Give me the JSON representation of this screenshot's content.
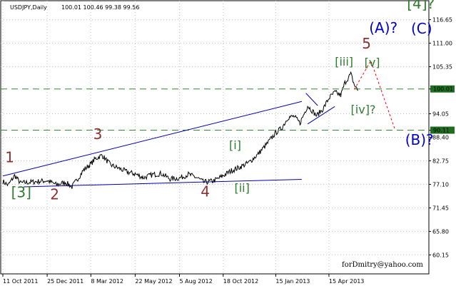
{
  "chart_data": {
    "type": "line",
    "header": {
      "symbol": "USDJPY,Daily",
      "ohlc": "100.01 100.46 99.38 99.56"
    },
    "y_ticks": [
      "116.65",
      "111.00",
      "105.35",
      "100.01",
      "94.05",
      "90.11",
      "88.40",
      "82.75",
      "77.10",
      "71.45",
      "65.80",
      "60.15"
    ],
    "y_tick_values": [
      116.65,
      111.0,
      105.35,
      100.01,
      94.05,
      90.11,
      88.4,
      82.75,
      77.1,
      71.45,
      65.8,
      60.15
    ],
    "ylim": [
      55.6,
      121.2
    ],
    "x_ticks": [
      "11 Oct 2011",
      "25 Dec 2011",
      "8 Mar 2012",
      "22 May 2012",
      "5 Aug 2012",
      "18 Oct 2012",
      "15 Jan 2013",
      "15 Apr 2013"
    ],
    "x_tick_dates": [
      "2011-10-11",
      "2011-12-25",
      "2012-03-08",
      "2012-05-22",
      "2012-08-05",
      "2012-10-18",
      "2013-01-15",
      "2013-04-15"
    ],
    "xlim": [
      "2011-10-11",
      "2013-09-30"
    ],
    "grid": true,
    "price_series": [
      [
        "2011-10-11",
        77.8
      ],
      [
        "2011-10-20",
        76.9
      ],
      [
        "2011-10-31",
        79.2
      ],
      [
        "2011-11-10",
        77.4
      ],
      [
        "2011-11-25",
        77.6
      ],
      [
        "2011-12-10",
        77.8
      ],
      [
        "2011-12-25",
        78.0
      ],
      [
        "2012-01-10",
        77.0
      ],
      [
        "2012-01-25",
        77.6
      ],
      [
        "2012-02-05",
        76.5
      ],
      [
        "2012-02-15",
        78.5
      ],
      [
        "2012-02-25",
        80.6
      ],
      [
        "2012-03-08",
        82.0
      ],
      [
        "2012-03-15",
        83.2
      ],
      [
        "2012-03-27",
        84.1
      ],
      [
        "2012-04-10",
        81.8
      ],
      [
        "2012-04-25",
        80.9
      ],
      [
        "2012-05-10",
        80.0
      ],
      [
        "2012-05-22",
        79.6
      ],
      [
        "2012-06-05",
        78.7
      ],
      [
        "2012-06-20",
        79.4
      ],
      [
        "2012-07-05",
        79.7
      ],
      [
        "2012-07-20",
        78.4
      ],
      [
        "2012-08-05",
        78.6
      ],
      [
        "2012-08-20",
        79.5
      ],
      [
        "2012-09-05",
        78.6
      ],
      [
        "2012-09-15",
        77.6
      ],
      [
        "2012-10-01",
        77.9
      ],
      [
        "2012-10-10",
        78.5
      ],
      [
        "2012-10-18",
        79.2
      ],
      [
        "2012-11-01",
        80.4
      ],
      [
        "2012-11-15",
        81.2
      ],
      [
        "2012-11-30",
        82.3
      ],
      [
        "2012-12-15",
        84.2
      ],
      [
        "2012-12-31",
        86.8
      ],
      [
        "2013-01-15",
        89.5
      ],
      [
        "2013-01-25",
        90.6
      ],
      [
        "2013-02-05",
        93.2
      ],
      [
        "2013-02-15",
        93.4
      ],
      [
        "2013-02-25",
        91.8
      ],
      [
        "2013-03-10",
        96.0
      ],
      [
        "2013-03-25",
        93.6
      ],
      [
        "2013-04-05",
        95.2
      ],
      [
        "2013-04-15",
        97.8
      ],
      [
        "2013-04-25",
        99.2
      ],
      [
        "2013-05-05",
        98.5
      ],
      [
        "2013-05-12",
        101.5
      ],
      [
        "2013-05-22",
        103.6
      ],
      [
        "2013-05-28",
        101.0
      ],
      [
        "2013-06-03",
        99.6
      ]
    ],
    "horizontal_levels": [
      {
        "value": 100.01,
        "label": "100.01"
      },
      {
        "value": 90.11,
        "label": "90.11"
      }
    ],
    "trend_lines": [
      {
        "from": [
          "2011-10-11",
          79.1
        ],
        "to": [
          "2013-02-28",
          97.0
        ]
      },
      {
        "from": [
          "2011-11-15",
          76.5
        ],
        "to": [
          "2013-02-28",
          78.3
        ]
      },
      {
        "from": [
          "2013-03-07",
          99.0
        ],
        "to": [
          "2013-03-27",
          96.0
        ]
      },
      {
        "from": [
          "2013-03-10",
          91.6
        ],
        "to": [
          "2013-04-25",
          95.8
        ]
      }
    ],
    "forecast_path": [
      [
        "2013-05-28",
        99.9
      ],
      [
        "2013-06-25",
        106.8
      ],
      [
        "2013-08-05",
        90.2
      ]
    ],
    "wave_labels": [
      {
        "text": "1",
        "date": "2011-10-15",
        "price": 82.4,
        "color": "#8b3030",
        "size": 20
      },
      {
        "text": "[3]",
        "date": "2011-10-25",
        "price": 74.0,
        "color": "#2e7d2e",
        "size": 20
      },
      {
        "text": "2",
        "date": "2011-12-30",
        "price": 73.5,
        "color": "#8b3030",
        "size": 20
      },
      {
        "text": "3",
        "date": "2012-03-12",
        "price": 88.0,
        "color": "#8b3030",
        "size": 20
      },
      {
        "text": "4",
        "date": "2012-09-10",
        "price": 74.2,
        "color": "#8b3030",
        "size": 20
      },
      {
        "text": "[i]",
        "date": "2012-10-28",
        "price": 85.6,
        "color": "#2e7d2e",
        "size": 16
      },
      {
        "text": "[ii]",
        "date": "2012-11-06",
        "price": 75.3,
        "color": "#2e7d2e",
        "size": 16
      },
      {
        "text": "[iii]",
        "date": "2013-04-25",
        "price": 105.6,
        "color": "#2e7d2e",
        "size": 16
      },
      {
        "text": "[iv]?",
        "date": "2013-05-22",
        "price": 94.1,
        "color": "#2e7d2e",
        "size": 16
      },
      {
        "text": "[v]",
        "date": "2013-06-14",
        "price": 105.4,
        "color": "#2e7d2e",
        "size": 16
      },
      {
        "text": "5",
        "date": "2013-06-10",
        "price": 109.7,
        "color": "#8b3030",
        "size": 20
      },
      {
        "text": "(A)?",
        "date": "2013-06-22",
        "price": 113.5,
        "color": "#0000cc",
        "size": 20
      },
      {
        "text": "(B)?",
        "date": "2013-08-22",
        "price": 86.6,
        "color": "#0000cc",
        "size": 20
      },
      {
        "text": "[4]?",
        "date": "2013-08-25",
        "price": 119.3,
        "color": "#2e7d2e",
        "size": 20
      },
      {
        "text": "(C)",
        "date": "2013-09-01",
        "price": 113.3,
        "color": "#0000cc",
        "size": 20
      }
    ],
    "watermark": "forDmitry@yahoo.com"
  }
}
